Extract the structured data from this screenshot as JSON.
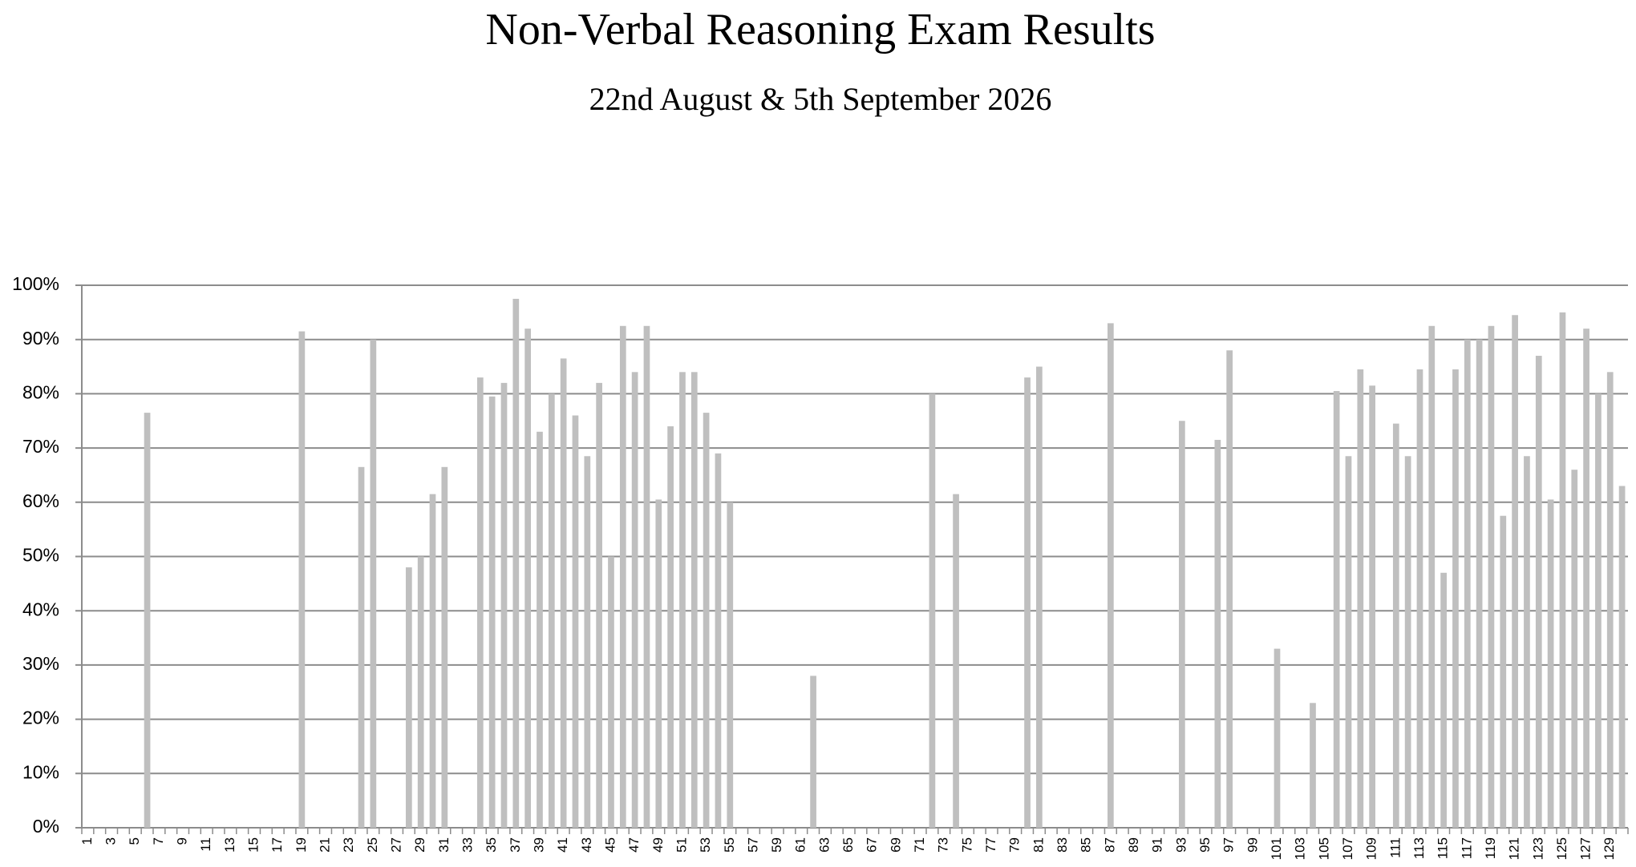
{
  "chart_data": {
    "type": "bar",
    "title": "Non-Verbal Reasoning Exam Results",
    "subtitle": "22nd August & 5th September 2026",
    "categories": [
      1,
      null,
      3,
      null,
      5,
      null,
      7,
      null,
      9,
      null,
      11,
      null,
      13,
      null,
      15,
      null,
      17,
      null,
      19,
      null,
      21,
      null,
      23,
      null,
      25,
      null,
      27,
      null,
      29,
      null,
      31,
      null,
      33,
      null,
      35,
      null,
      37,
      null,
      39,
      null,
      41,
      null,
      43,
      null,
      45,
      null,
      47,
      null,
      49,
      null,
      51,
      null,
      53,
      null,
      55,
      null,
      57,
      null,
      59,
      null,
      61,
      null,
      63,
      null,
      65,
      null,
      67,
      null,
      69,
      null,
      71,
      null,
      73,
      null,
      75,
      null,
      77,
      null,
      79,
      null,
      81,
      null,
      83,
      null,
      85,
      null,
      87,
      null,
      89,
      null,
      91,
      null,
      93,
      null,
      95,
      null,
      97,
      null,
      99,
      null,
      101,
      null,
      103,
      null,
      105,
      null,
      107,
      null,
      109,
      null,
      111,
      null,
      113,
      null,
      115,
      null,
      117,
      null,
      119,
      null,
      121,
      null,
      123,
      null,
      125,
      null,
      127,
      null,
      129,
      null
    ],
    "values": [
      0,
      0,
      0,
      0,
      0,
      76.5,
      0,
      0,
      0,
      0,
      0,
      0,
      0,
      0,
      0,
      0,
      0,
      0,
      91.5,
      0,
      0,
      0,
      0,
      66.5,
      90,
      0,
      0,
      48,
      50,
      61.5,
      66.5,
      0,
      0,
      83,
      79.5,
      82,
      97.5,
      92,
      73,
      80,
      86.5,
      76,
      68.5,
      82,
      50,
      92.5,
      84,
      92.5,
      60.5,
      74,
      84,
      84,
      76.5,
      69,
      60,
      0,
      0,
      0,
      0,
      0,
      0,
      28,
      0,
      0,
      0,
      0,
      0,
      0,
      0,
      0,
      0,
      80,
      0,
      61.5,
      0,
      0,
      0,
      0,
      0,
      83,
      85,
      0,
      0,
      0,
      0,
      0,
      93,
      0,
      0,
      0,
      0,
      0,
      75,
      0,
      0,
      71.5,
      88,
      0,
      0,
      0,
      33,
      0,
      0,
      23,
      0,
      80.5,
      68.5,
      84.5,
      81.5,
      0,
      74.5,
      68.5,
      84.5,
      92.5,
      47,
      84.5,
      90,
      90,
      92.5,
      57.5,
      94.5,
      68.5,
      87,
      60.5,
      95,
      66,
      92,
      80,
      84,
      63
    ],
    "color": "#bfbfbf",
    "ylim": [
      0,
      100
    ],
    "yticks": [
      {
        "value": 0,
        "label": "0%"
      },
      {
        "value": 10,
        "label": "10%"
      },
      {
        "value": 20,
        "label": "20%"
      },
      {
        "value": 30,
        "label": "30%"
      },
      {
        "value": 40,
        "label": "40%"
      },
      {
        "value": 50,
        "label": "50%"
      },
      {
        "value": 60,
        "label": "60%"
      },
      {
        "value": 70,
        "label": "70%"
      },
      {
        "value": 80,
        "label": "80%"
      },
      {
        "value": 90,
        "label": "90%"
      },
      {
        "value": 100,
        "label": "100%"
      }
    ],
    "grid": true
  }
}
